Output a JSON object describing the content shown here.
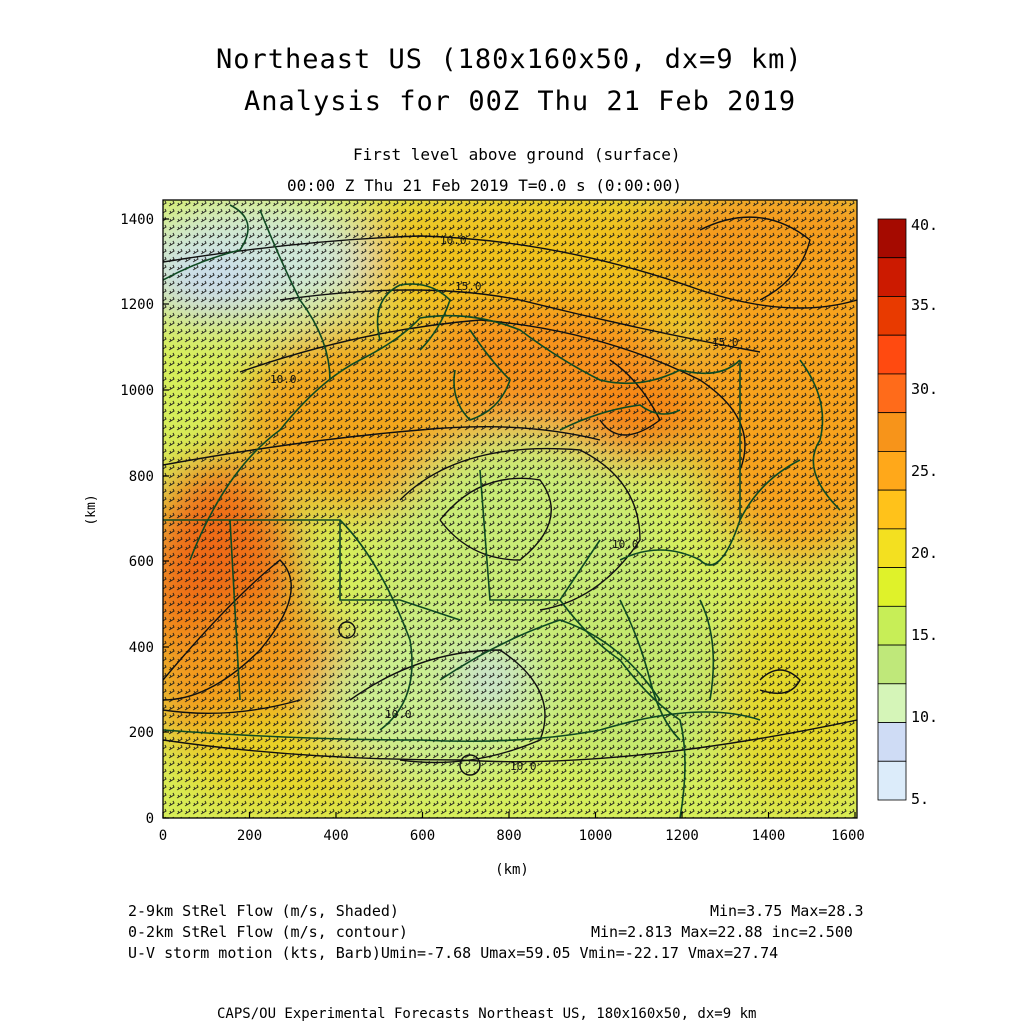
{
  "header": {
    "title_line1": "Northeast US (180x160x50, dx=9 km)",
    "title_line2": "Analysis for 00Z Thu 21 Feb 2019",
    "level": "First level above ground (surface)",
    "time": "00:00 Z Thu 21 Feb 2019   T=0.0 s (0:00:00)"
  },
  "axes": {
    "x_label": "(km)",
    "y_label": "(km)",
    "x_ticks": [
      "0",
      "200",
      "400",
      "600",
      "800",
      "1000",
      "1200",
      "1400",
      "1600"
    ],
    "y_ticks": [
      "0",
      "200",
      "400",
      "600",
      "800",
      "1000",
      "1200",
      "1400"
    ]
  },
  "colorbar": {
    "labels": [
      "40.",
      "35.",
      "30.",
      "25.",
      "20.",
      "15.",
      "10.",
      "5."
    ],
    "colors": [
      "#a50a00",
      "#cc1a00",
      "#e83a00",
      "#ff4a10",
      "#ff6b1a",
      "#f7941a",
      "#ffa81a",
      "#ffc21a",
      "#f3e020",
      "#dff22a",
      "#c7ee57",
      "#bfe87a",
      "#d5f5b8",
      "#cfdcf5",
      "#dcecfa"
    ]
  },
  "contour_labels": [
    "10.0",
    "15.0",
    "15.0",
    "10.0",
    "10.0",
    "10.0",
    "10.0"
  ],
  "footer": {
    "line1_left": "2-9km StRel Flow (m/s, Shaded)",
    "line1_right": "Min=3.75 Max=28.3",
    "line2_left": "0-2km StRel Flow (m/s, contour)",
    "line2_right": "Min=2.813 Max=22.88 inc=2.500",
    "line3": "U-V storm motion (kts, Barb)Umin=-7.68 Umax=59.05 Vmin=-22.17 Vmax=27.74",
    "credit": "CAPS/OU Experimental Forecasts  Northeast US, 180x160x50, dx=9 km"
  }
}
